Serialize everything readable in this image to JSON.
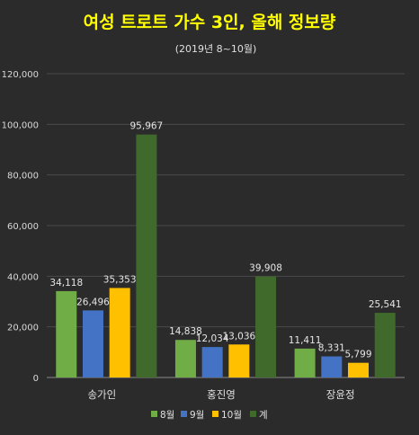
{
  "chart_data": {
    "type": "bar",
    "title": "여성 트로트 가수 3인, 올해 정보량",
    "subtitle": "(2019년 8~10월)",
    "xlabel": "",
    "ylabel": "",
    "categories": [
      "송가인",
      "홍진영",
      "장윤정"
    ],
    "series": [
      {
        "name": "8월",
        "color": "#70ad47",
        "values": [
          34118,
          14838,
          11411
        ]
      },
      {
        "name": "9월",
        "color": "#4472c4",
        "values": [
          26496,
          12034,
          8331
        ]
      },
      {
        "name": "10월",
        "color": "#ffc000",
        "values": [
          35353,
          13036,
          5799
        ]
      },
      {
        "name": "계",
        "color": "#3f6a2b",
        "values": [
          95967,
          39908,
          25541
        ]
      }
    ],
    "ylim": [
      0,
      120000
    ],
    "yticks": [
      "0",
      "20,000",
      "40,000",
      "60,000",
      "80,000",
      "100,000",
      "120,000"
    ],
    "data_labels": [
      [
        "34,118",
        "14,838",
        "11,411"
      ],
      [
        "26,496",
        "12,034",
        "8,331"
      ],
      [
        "35,353",
        "13,036",
        "5,799"
      ],
      [
        "95,967",
        "39,908",
        "25,541"
      ]
    ],
    "grid": true,
    "legend_position": "bottom",
    "title_color": "#ffff00"
  }
}
